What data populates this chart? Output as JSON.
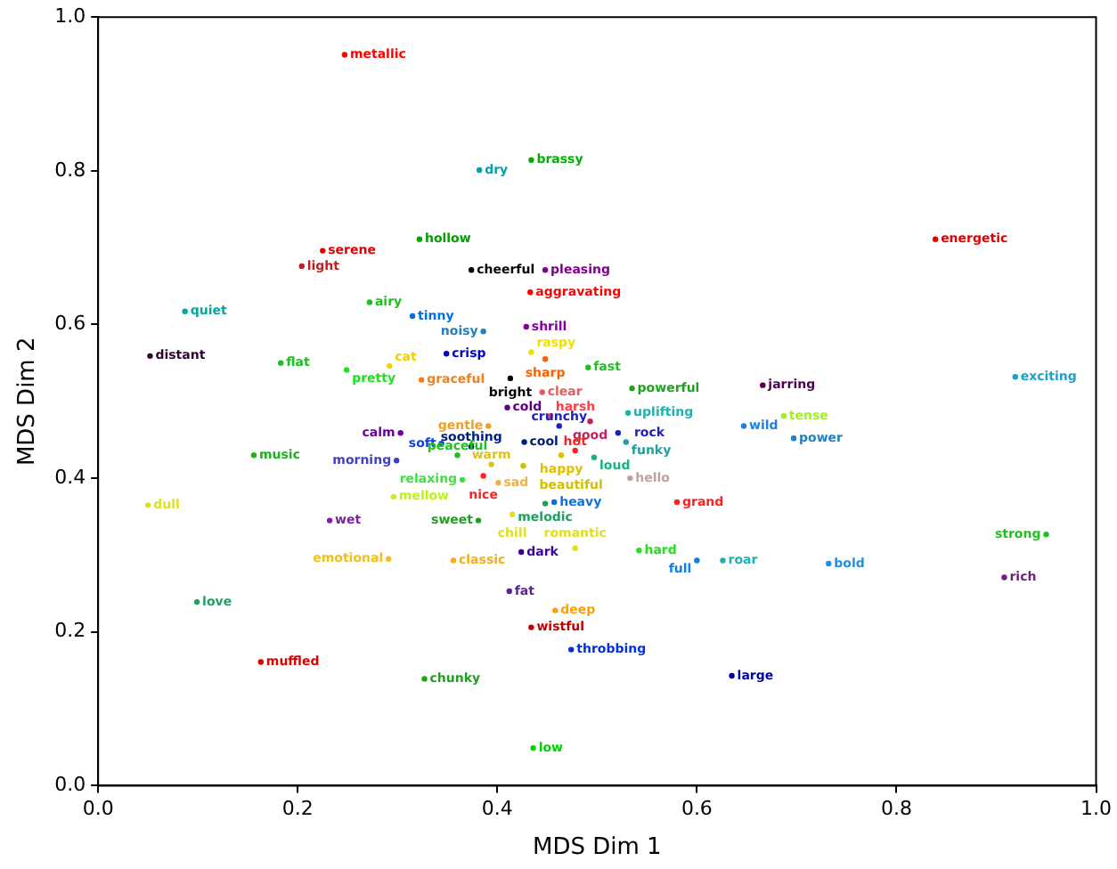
{
  "chart_data": {
    "type": "scatter",
    "xlabel": "MDS Dim 1",
    "ylabel": "MDS Dim 2",
    "xlim": [
      0,
      1
    ],
    "ylim": [
      0,
      1
    ],
    "xticks": [
      {
        "value": 0,
        "label": "0.0"
      },
      {
        "value": 0.2,
        "label": "0.2"
      },
      {
        "value": 0.4,
        "label": "0.4"
      },
      {
        "value": 0.6,
        "label": "0.6"
      },
      {
        "value": 0.8,
        "label": "0.8"
      },
      {
        "value": 1,
        "label": "1.0"
      }
    ],
    "yticks": [
      {
        "value": 0,
        "label": "0.0"
      },
      {
        "value": 0.2,
        "label": "0.2"
      },
      {
        "value": 0.4,
        "label": "0.4"
      },
      {
        "value": 0.6,
        "label": "0.6"
      },
      {
        "value": 0.8,
        "label": "0.8"
      },
      {
        "value": 1,
        "label": "1.0"
      }
    ],
    "grid": false,
    "legend": false,
    "marker": "circle",
    "series": [
      {
        "x": [
          0.247,
          0.382,
          0.434,
          0.322,
          0.225,
          0.204,
          0.448,
          0.374,
          0.433,
          0.839,
          0.087,
          0.315,
          0.272,
          0.386,
          0.429,
          0.052,
          0.183,
          0.249,
          0.292,
          0.324,
          0.349,
          0.434,
          0.448,
          0.491,
          0.413,
          0.445,
          0.535,
          0.666,
          0.919,
          0.41,
          0.453,
          0.493,
          0.531,
          0.462,
          0.391,
          0.687,
          0.647,
          0.521,
          0.697,
          0.303,
          0.344,
          0.374,
          0.299,
          0.156,
          0.36,
          0.427,
          0.464,
          0.529,
          0.497,
          0.478,
          0.426,
          0.394,
          0.365,
          0.386,
          0.401,
          0.533,
          0.58,
          0.05,
          0.296,
          0.457,
          0.448,
          0.415,
          0.232,
          0.381,
          0.542,
          0.478,
          0.424,
          0.356,
          0.291,
          0.6,
          0.626,
          0.732,
          0.95,
          0.908,
          0.099,
          0.412,
          0.458,
          0.434,
          0.474,
          0.163,
          0.327,
          0.635,
          0.436
        ],
        "values": [
          0.951,
          0.801,
          0.814,
          0.711,
          0.696,
          0.676,
          0.671,
          0.671,
          0.642,
          0.711,
          0.617,
          0.611,
          0.629,
          0.591,
          0.597,
          0.559,
          0.55,
          0.541,
          0.546,
          0.528,
          0.562,
          0.564,
          0.555,
          0.544,
          0.53,
          0.512,
          0.517,
          0.521,
          0.532,
          0.492,
          0.481,
          0.474,
          0.485,
          0.468,
          0.468,
          0.481,
          0.468,
          0.459,
          0.452,
          0.459,
          0.445,
          0.441,
          0.423,
          0.43,
          0.43,
          0.447,
          0.43,
          0.447,
          0.427,
          0.436,
          0.416,
          0.418,
          0.398,
          0.403,
          0.394,
          0.4,
          0.369,
          0.365,
          0.376,
          0.369,
          0.367,
          0.353,
          0.345,
          0.345,
          0.306,
          0.309,
          0.304,
          0.293,
          0.295,
          0.293,
          0.293,
          0.289,
          0.327,
          0.271,
          0.239,
          0.253,
          0.228,
          0.206,
          0.177,
          0.161,
          0.139,
          0.143,
          0.049
        ],
        "value_labels": [
          "metallic",
          "dry",
          "brassy",
          "hollow",
          "serene",
          "light",
          "pleasing",
          "cheerful",
          "aggravating",
          "energetic",
          "quiet",
          "tinny",
          "airy",
          "noisy",
          "shrill",
          "distant",
          "flat",
          "pretty",
          "cat",
          "graceful",
          "crisp",
          "raspy",
          "sharp",
          "fast",
          "bright",
          "clear",
          "powerful",
          "jarring",
          "exciting",
          "cold",
          "harsh",
          "good",
          "uplifting",
          "crunchy",
          "gentle",
          "tense",
          "wild",
          "rock",
          "power",
          "calm",
          "soft",
          "soothing",
          "morning",
          "music",
          "peaceful",
          "cool",
          "happy",
          "funky",
          "loud",
          "hot",
          "beautiful",
          "warm",
          "relaxing",
          "nice",
          "sad",
          "hello",
          "grand",
          "dull",
          "mellow",
          "heavy",
          "melodic",
          "chill",
          "wet",
          "sweet",
          "hard",
          "romantic",
          "dark",
          "classic",
          "emotional",
          "full",
          "roar",
          "bold",
          "strong",
          "rich",
          "love",
          "fat",
          "deep",
          "wistful",
          "throbbing",
          "muffled",
          "chunky",
          "large",
          "low"
        ],
        "colors": [
          "#ff0000",
          "#00a0b0",
          "#00b000",
          "#00a000",
          "#e00000",
          "#c02020",
          "#800090",
          "#000000",
          "#ff0000",
          "#e00000",
          "#00a8a0",
          "#0070e0",
          "#20c020",
          "#2080c0",
          "#8000a0",
          "#300030",
          "#20c020",
          "#20e020",
          "#f0d000",
          "#f08020",
          "#0000c0",
          "#f0e000",
          "#ff6000",
          "#20c020",
          "#000000",
          "#e06060",
          "#20a020",
          "#500050",
          "#20a0d0",
          "#600080",
          "#ff4040",
          "#c02060",
          "#20b0b0",
          "#2020c0",
          "#f0a020",
          "#a0f020",
          "#2080e0",
          "#2020c0",
          "#2080c0",
          "#7000a0",
          "#1040e0",
          "#002080",
          "#4040c0",
          "#20b020",
          "#20c020",
          "#002080",
          "#e0c000",
          "#20a0a0",
          "#20b080",
          "#ff2020",
          "#d0c000",
          "#e0c020",
          "#40e040",
          "#ff2020",
          "#f0b040",
          "#c0a0a0",
          "#ff2020",
          "#e0e020",
          "#c0f020",
          "#1070e0",
          "#20a060",
          "#e0e020",
          "#8020a0",
          "#20a020",
          "#20e020",
          "#e0e020",
          "#4000a0",
          "#f0b020",
          "#f0c020",
          "#1080e0",
          "#20b0b0",
          "#2090e0",
          "#20c020",
          "#702080",
          "#20a060",
          "#6020a0",
          "#ffa000",
          "#c00000",
          "#0030e0",
          "#e00000",
          "#20a020",
          "#0000a0",
          "#00d000"
        ]
      }
    ]
  }
}
